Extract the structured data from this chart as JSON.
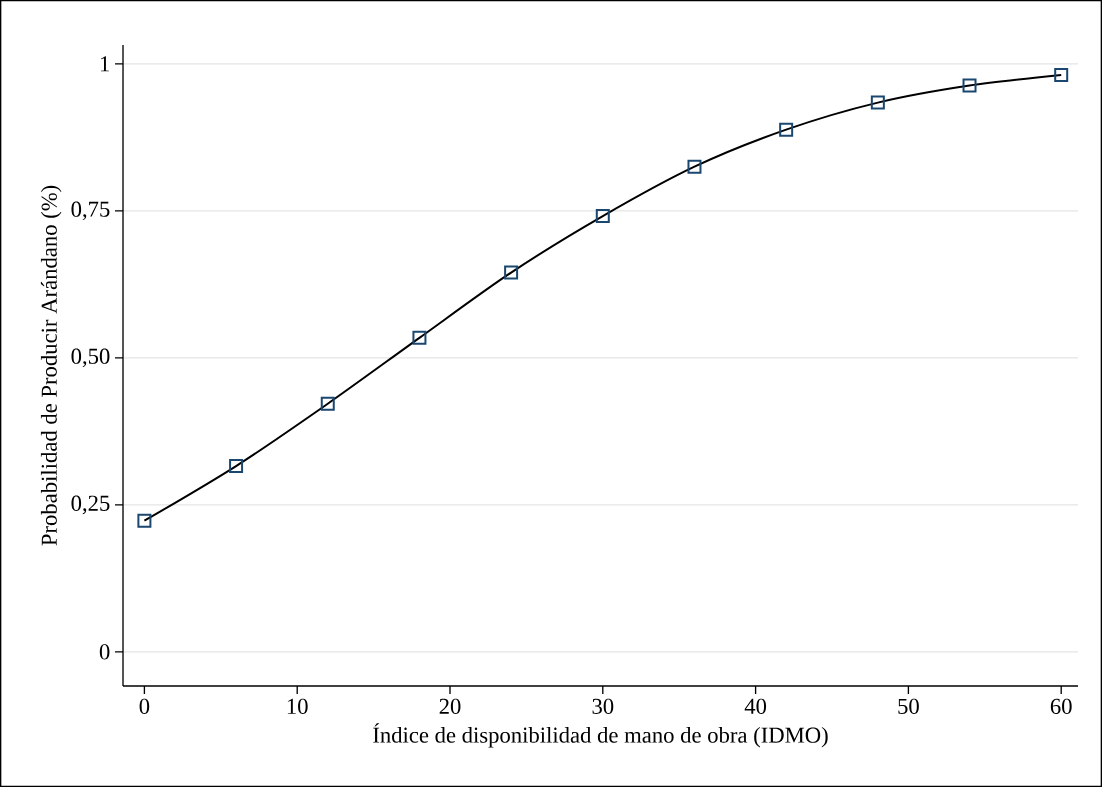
{
  "chart_data": {
    "type": "line",
    "xlabel": "Índice de disponibilidad de mano de obra (IDMO)",
    "ylabel": "Probabilidad de Producir Arándano (%)",
    "x": [
      0,
      6,
      12,
      18,
      24,
      30,
      36,
      42,
      48,
      54,
      60
    ],
    "series": [
      {
        "color": "#000000",
        "marker": "none",
        "values": [
          0.223,
          0.316,
          0.422,
          0.534,
          0.645,
          0.741,
          0.825,
          0.888,
          0.934,
          0.963,
          0.981
        ]
      },
      {
        "type": "scatter",
        "color": "#1a476f",
        "marker": "square",
        "values": [
          0.223,
          0.316,
          0.422,
          0.534,
          0.645,
          0.741,
          0.825,
          0.888,
          0.934,
          0.963,
          0.981
        ]
      }
    ],
    "xlim": [
      -1.4,
      61.1
    ],
    "ylim": [
      -0.058,
      1.032
    ],
    "xticks": [
      0,
      10,
      20,
      30,
      40,
      50,
      60
    ],
    "yticks": [
      0,
      {
        "value": 0.25,
        "label": "0,25"
      },
      {
        "value": 0.5,
        "label": "0,50"
      },
      {
        "value": 0.75,
        "label": "0,75"
      },
      1
    ],
    "grid": "y"
  }
}
